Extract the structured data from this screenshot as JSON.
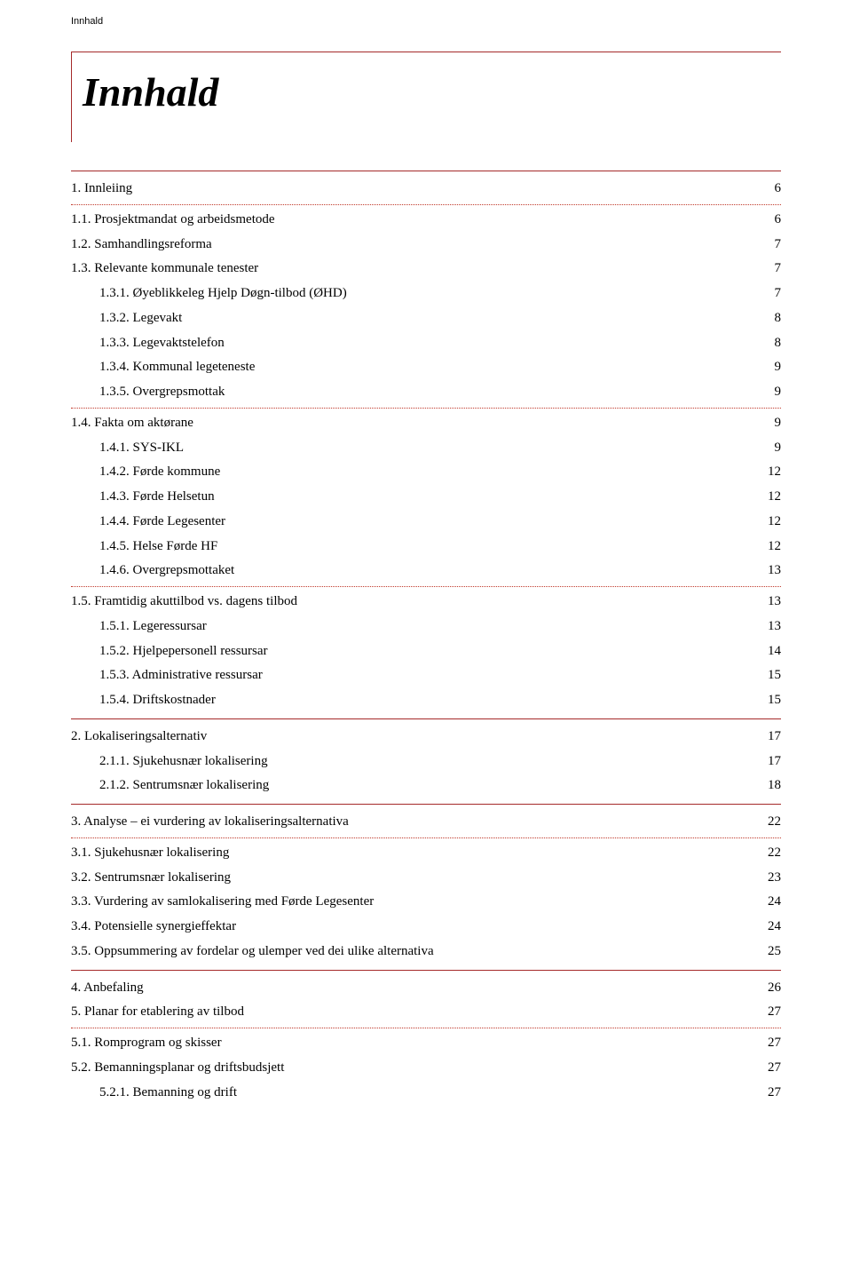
{
  "header_label": "Innhald",
  "title": "Innhald",
  "colors": {
    "accent": "#a52a2a",
    "dotted": "#c0392b",
    "text": "#000000",
    "background": "#ffffff"
  },
  "toc": [
    {
      "label": "1. Innleiing",
      "page": "6",
      "indent": 0,
      "divider_after": "dotted"
    },
    {
      "label": "1.1. Prosjektmandat og arbeidsmetode",
      "page": "6",
      "indent": 0
    },
    {
      "label": "1.2. Samhandlingsreforma",
      "page": "7",
      "indent": 0
    },
    {
      "label": "1.3. Relevante kommunale tenester",
      "page": "7",
      "indent": 0
    },
    {
      "label": "1.3.1. Øyeblikkeleg Hjelp Døgn-tilbod (ØHD)",
      "page": "7",
      "indent": 1
    },
    {
      "label": "1.3.2. Legevakt",
      "page": "8",
      "indent": 1
    },
    {
      "label": "1.3.3. Legevaktstelefon",
      "page": "8",
      "indent": 1
    },
    {
      "label": "1.3.4. Kommunal legeteneste",
      "page": "9",
      "indent": 1
    },
    {
      "label": "1.3.5. Overgrepsmottak",
      "page": "9",
      "indent": 1,
      "divider_after": "dotted"
    },
    {
      "label": "1.4. Fakta om aktørane",
      "page": "9",
      "indent": 0
    },
    {
      "label": "1.4.1. SYS-IKL",
      "page": "9",
      "indent": 1
    },
    {
      "label": "1.4.2. Førde kommune",
      "page": "12",
      "indent": 1
    },
    {
      "label": "1.4.3. Førde Helsetun",
      "page": "12",
      "indent": 1
    },
    {
      "label": "1.4.4. Førde Legesenter",
      "page": "12",
      "indent": 1
    },
    {
      "label": "1.4.5. Helse Førde HF",
      "page": "12",
      "indent": 1
    },
    {
      "label": "1.4.6. Overgrepsmottaket",
      "page": "13",
      "indent": 1,
      "divider_after": "dotted"
    },
    {
      "label": "1.5. Framtidig akuttilbod vs. dagens tilbod",
      "page": "13",
      "indent": 0
    },
    {
      "label": "1.5.1. Legeressursar",
      "page": "13",
      "indent": 1
    },
    {
      "label": "1.5.2. Hjelpepersonell ressursar",
      "page": "14",
      "indent": 1
    },
    {
      "label": "1.5.3. Administrative ressursar",
      "page": "15",
      "indent": 1
    },
    {
      "label": "1.5.4. Driftskostnader",
      "page": "15",
      "indent": 1,
      "divider_after": "solid"
    },
    {
      "label": "2. Lokaliseringsalternativ",
      "page": "17",
      "indent": 0
    },
    {
      "label": "2.1.1. Sjukehusnær lokalisering",
      "page": "17",
      "indent": 1
    },
    {
      "label": "2.1.2. Sentrumsnær lokalisering",
      "page": "18",
      "indent": 1,
      "divider_after": "solid"
    },
    {
      "label": "3. Analyse – ei vurdering av lokaliseringsalternativa",
      "page": "22",
      "indent": 0,
      "divider_after": "dotted"
    },
    {
      "label": "3.1. Sjukehusnær lokalisering",
      "page": "22",
      "indent": 0
    },
    {
      "label": "3.2. Sentrumsnær lokalisering",
      "page": "23",
      "indent": 0
    },
    {
      "label": "3.3. Vurdering av samlokalisering med Førde Legesenter",
      "page": "24",
      "indent": 0
    },
    {
      "label": "3.4. Potensielle synergieffektar",
      "page": "24",
      "indent": 0
    },
    {
      "label": "3.5. Oppsummering av fordelar og ulemper ved dei ulike alternativa",
      "page": "25",
      "indent": 0,
      "divider_after": "solid"
    },
    {
      "label": "4. Anbefaling",
      "page": "26",
      "indent": 0
    },
    {
      "label": "5. Planar for etablering av tilbod",
      "page": "27",
      "indent": 0,
      "divider_after": "dotted"
    },
    {
      "label": "5.1. Romprogram og skisser",
      "page": "27",
      "indent": 0
    },
    {
      "label": "5.2. Bemanningsplanar og driftsbudsjett",
      "page": "27",
      "indent": 0
    },
    {
      "label": "5.2.1. Bemanning og drift",
      "page": "27",
      "indent": 1
    }
  ]
}
